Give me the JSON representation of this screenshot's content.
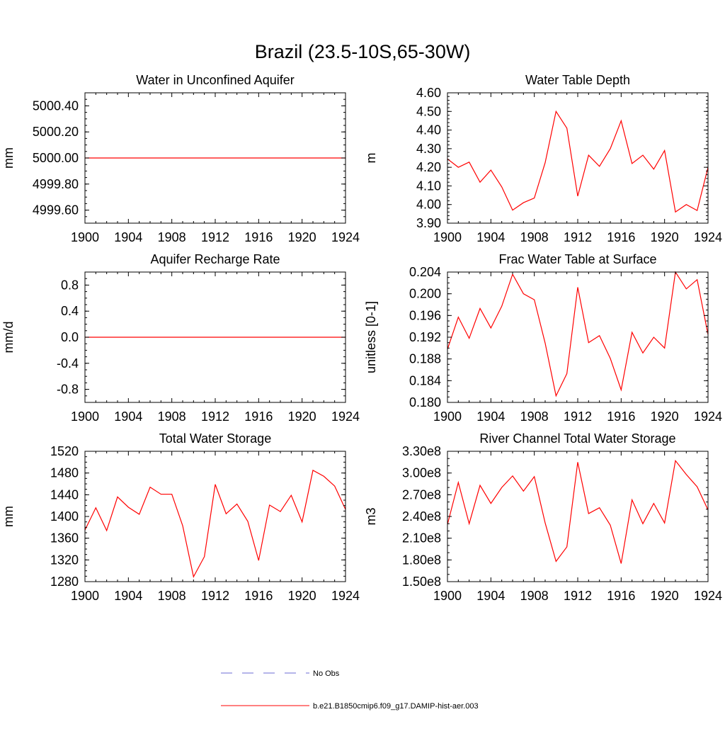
{
  "title": "Brazil (23.5-10S,65-30W)",
  "colors": {
    "model": "#ff0000",
    "obs": "#6b6bd6",
    "axis": "#000000"
  },
  "legend": [
    {
      "label": "No Obs",
      "style": "dashed",
      "color": "#6b6bd6"
    },
    {
      "label": "b.e21.B1850cmip6.f09_g17.DAMIP-hist-aer.003",
      "style": "solid",
      "color": "#ff0000"
    }
  ],
  "chart_data": [
    {
      "type": "line",
      "title": "Water in Unconfined Aquifer",
      "ylabel": "mm",
      "xlim": [
        1900,
        1924
      ],
      "ylim": [
        4999.5,
        5000.5
      ],
      "xticks": [
        1900,
        1904,
        1908,
        1912,
        1916,
        1920,
        1924
      ],
      "yticks": [
        4999.6,
        4999.8,
        5000.0,
        5000.2,
        5000.4
      ],
      "ytick_labels": [
        "4999.60",
        "4999.80",
        "5000.00",
        "5000.20",
        "5000.40"
      ],
      "ymin_step": 0.05,
      "x": [
        1900,
        1901,
        1902,
        1903,
        1904,
        1905,
        1906,
        1907,
        1908,
        1909,
        1910,
        1911,
        1912,
        1913,
        1914,
        1915,
        1916,
        1917,
        1918,
        1919,
        1920,
        1921,
        1922,
        1923,
        1924
      ],
      "series": [
        {
          "values": [
            5000,
            5000,
            5000,
            5000,
            5000,
            5000,
            5000,
            5000,
            5000,
            5000,
            5000,
            5000,
            5000,
            5000,
            5000,
            5000,
            5000,
            5000,
            5000,
            5000,
            5000,
            5000,
            5000,
            5000,
            5000
          ]
        }
      ]
    },
    {
      "type": "line",
      "title": "Water Table Depth",
      "ylabel": "m",
      "xlim": [
        1900,
        1924
      ],
      "ylim": [
        3.9,
        4.6
      ],
      "xticks": [
        1900,
        1904,
        1908,
        1912,
        1916,
        1920,
        1924
      ],
      "yticks": [
        3.9,
        4.0,
        4.1,
        4.2,
        4.3,
        4.4,
        4.5,
        4.6
      ],
      "ytick_labels": [
        "3.90",
        "4.00",
        "4.10",
        "4.20",
        "4.30",
        "4.40",
        "4.50",
        "4.60"
      ],
      "ymin_step": 0.02,
      "x": [
        1900,
        1901,
        1902,
        1903,
        1904,
        1905,
        1906,
        1907,
        1908,
        1909,
        1910,
        1911,
        1912,
        1913,
        1914,
        1915,
        1916,
        1917,
        1918,
        1919,
        1920,
        1921,
        1922,
        1923,
        1924
      ],
      "series": [
        {
          "values": [
            4.245,
            4.2,
            4.228,
            4.12,
            4.185,
            4.095,
            3.97,
            4.01,
            4.035,
            4.225,
            4.5,
            4.41,
            4.045,
            4.265,
            4.205,
            4.3,
            4.45,
            4.22,
            4.265,
            4.19,
            4.29,
            3.96,
            4.0,
            3.968,
            4.2
          ]
        }
      ]
    },
    {
      "type": "line",
      "title": "Aquifer Recharge Rate",
      "ylabel": "mm/d",
      "xlim": [
        1900,
        1924
      ],
      "ylim": [
        -1.0,
        1.0
      ],
      "xticks": [
        1900,
        1904,
        1908,
        1912,
        1916,
        1920,
        1924
      ],
      "yticks": [
        -0.8,
        -0.4,
        0.0,
        0.4,
        0.8
      ],
      "ytick_labels": [
        "-0.8",
        "-0.4",
        "0.0",
        "0.4",
        "0.8"
      ],
      "ymin_step": 0.1,
      "x": [
        1900,
        1901,
        1902,
        1903,
        1904,
        1905,
        1906,
        1907,
        1908,
        1909,
        1910,
        1911,
        1912,
        1913,
        1914,
        1915,
        1916,
        1917,
        1918,
        1919,
        1920,
        1921,
        1922,
        1923,
        1924
      ],
      "series": [
        {
          "values": [
            0,
            0,
            0,
            0,
            0,
            0,
            0,
            0,
            0,
            0,
            0,
            0,
            0,
            0,
            0,
            0,
            0,
            0,
            0,
            0,
            0,
            0,
            0,
            0,
            0
          ]
        }
      ]
    },
    {
      "type": "line",
      "title": "Frac Water Table at Surface",
      "ylabel": "unitless [0-1]",
      "xlim": [
        1900,
        1924
      ],
      "ylim": [
        0.18,
        0.204
      ],
      "xticks": [
        1900,
        1904,
        1908,
        1912,
        1916,
        1920,
        1924
      ],
      "yticks": [
        0.18,
        0.184,
        0.188,
        0.192,
        0.196,
        0.2,
        0.204
      ],
      "ytick_labels": [
        "0.180",
        "0.184",
        "0.188",
        "0.192",
        "0.196",
        "0.200",
        "0.204"
      ],
      "ymin_step": 0.001,
      "x": [
        1900,
        1901,
        1902,
        1903,
        1904,
        1905,
        1906,
        1907,
        1908,
        1909,
        1910,
        1911,
        1912,
        1913,
        1914,
        1915,
        1916,
        1917,
        1918,
        1919,
        1920,
        1921,
        1922,
        1923,
        1924
      ],
      "series": [
        {
          "values": [
            0.1898,
            0.1957,
            0.1918,
            0.1973,
            0.1937,
            0.1977,
            0.2036,
            0.2,
            0.1989,
            0.1909,
            0.1812,
            0.1853,
            0.2012,
            0.191,
            0.1923,
            0.1881,
            0.1823,
            0.1929,
            0.1891,
            0.192,
            0.19,
            0.204,
            0.2009,
            0.2026,
            0.1925
          ]
        }
      ]
    },
    {
      "type": "line",
      "title": "Total Water Storage",
      "ylabel": "mm",
      "xlim": [
        1900,
        1924
      ],
      "ylim": [
        1280,
        1520
      ],
      "xticks": [
        1900,
        1904,
        1908,
        1912,
        1916,
        1920,
        1924
      ],
      "yticks": [
        1280,
        1320,
        1360,
        1400,
        1440,
        1480,
        1520
      ],
      "ytick_labels": [
        "1280",
        "1320",
        "1360",
        "1400",
        "1440",
        "1480",
        "1520"
      ],
      "ymin_step": 10,
      "x": [
        1900,
        1901,
        1902,
        1903,
        1904,
        1905,
        1906,
        1907,
        1908,
        1909,
        1910,
        1911,
        1912,
        1913,
        1914,
        1915,
        1916,
        1917,
        1918,
        1919,
        1920,
        1921,
        1922,
        1923,
        1924
      ],
      "series": [
        {
          "values": [
            1375,
            1416,
            1374,
            1436,
            1417,
            1404,
            1454,
            1441,
            1441,
            1383,
            1289,
            1326,
            1459,
            1405,
            1423,
            1391,
            1319,
            1421,
            1409,
            1439,
            1390,
            1485,
            1474,
            1456,
            1413
          ]
        }
      ]
    },
    {
      "type": "line",
      "title": "River Channel Total Water Storage",
      "ylabel": "m3",
      "xlim": [
        1900,
        1924
      ],
      "ylim": [
        150000000,
        330000000
      ],
      "xticks": [
        1900,
        1904,
        1908,
        1912,
        1916,
        1920,
        1924
      ],
      "yticks": [
        150000000,
        180000000,
        210000000,
        240000000,
        270000000,
        300000000,
        330000000
      ],
      "ytick_labels": [
        "1.50e8",
        "1.80e8",
        "2.10e8",
        "2.40e8",
        "2.70e8",
        "3.00e8",
        "3.30e8"
      ],
      "ymin_step": 10000000,
      "x": [
        1900,
        1901,
        1902,
        1903,
        1904,
        1905,
        1906,
        1907,
        1908,
        1909,
        1910,
        1911,
        1912,
        1913,
        1914,
        1915,
        1916,
        1917,
        1918,
        1919,
        1920,
        1921,
        1922,
        1923,
        1924
      ],
      "series": [
        {
          "values": [
            229000000,
            287000000,
            230000000,
            283000000,
            258000000,
            280000000,
            296000000,
            275000000,
            295000000,
            231000000,
            178000000,
            198000000,
            315000000,
            244000000,
            252000000,
            228000000,
            175000000,
            263000000,
            230000000,
            258000000,
            231000000,
            317000000,
            298000000,
            281000000,
            249000000
          ]
        }
      ]
    }
  ]
}
